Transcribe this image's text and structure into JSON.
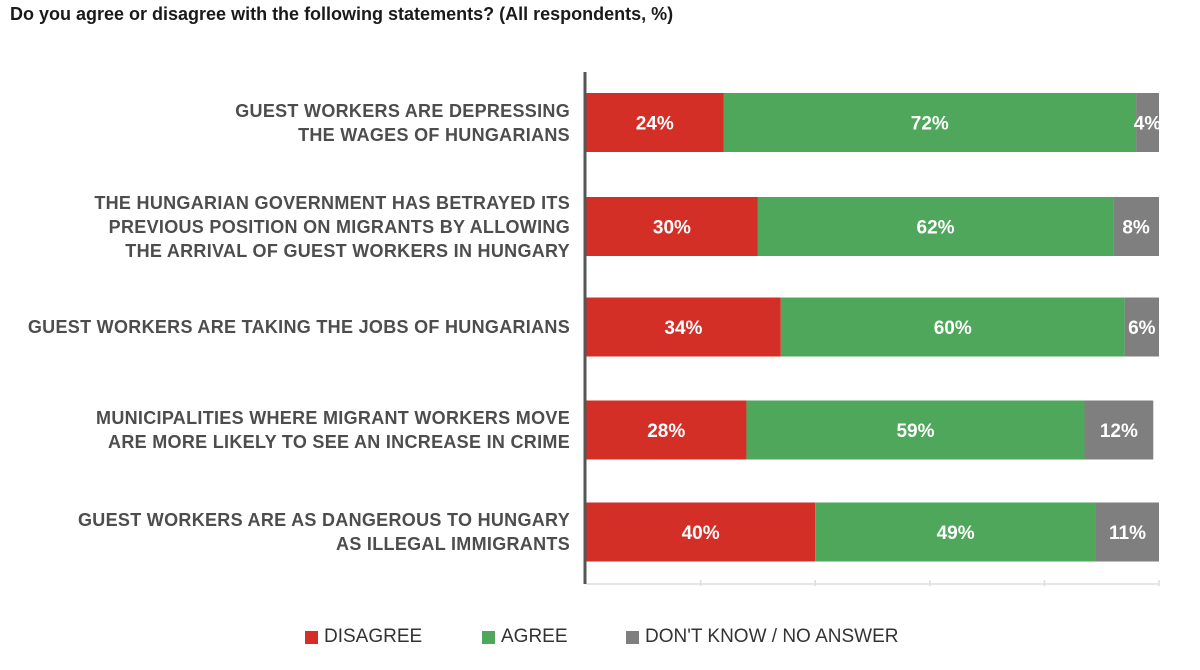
{
  "title": "Do you agree or disagree with the following statements? (All respondents, %)",
  "colors": {
    "disagree": "#d32f27",
    "agree": "#4ea75a",
    "dont_know": "#7f7f7f",
    "axis": "#555555",
    "grid": "#dddddd",
    "bar_text": "#ffffff"
  },
  "legend": {
    "disagree": "DISAGREE",
    "agree": "AGREE",
    "dont_know": "DON'T KNOW / NO ANSWER"
  },
  "chart_data": {
    "type": "bar",
    "orientation": "horizontal",
    "stacked": true,
    "title": "Do you agree or disagree with the following statements? (All respondents, %)",
    "xlim": [
      0,
      100
    ],
    "grid": false,
    "legend_position": "bottom",
    "categories": [
      "GUEST WORKERS ARE DEPRESSING\nTHE WAGES OF HUNGARIANS",
      "THE HUNGARIAN GOVERNMENT HAS BETRAYED ITS\nPREVIOUS POSITION ON MIGRANTS BY ALLOWING\nTHE ARRIVAL OF GUEST WORKERS IN HUNGARY",
      "GUEST WORKERS ARE TAKING THE JOBS OF HUNGARIANS",
      "MUNICIPALITIES WHERE MIGRANT WORKERS MOVE\nARE MORE LIKELY TO SEE AN INCREASE IN CRIME",
      "GUEST WORKERS ARE AS DANGEROUS TO HUNGARY\nAS ILLEGAL IMMIGRANTS"
    ],
    "series": [
      {
        "name": "DISAGREE",
        "key": "disagree",
        "values": [
          24,
          30,
          34,
          28,
          40
        ],
        "labels": [
          "24%",
          "30%",
          "34%",
          "28%",
          "40%"
        ]
      },
      {
        "name": "AGREE",
        "key": "agree",
        "values": [
          72,
          62,
          60,
          59,
          49
        ],
        "labels": [
          "72%",
          "62%",
          "60%",
          "59%",
          "49%"
        ]
      },
      {
        "name": "DON'T KNOW / NO ANSWER",
        "key": "dont_know",
        "values": [
          4,
          8,
          6,
          12,
          11
        ],
        "labels": [
          "4%",
          "8%",
          "6%",
          "12%",
          "11%"
        ]
      }
    ]
  }
}
